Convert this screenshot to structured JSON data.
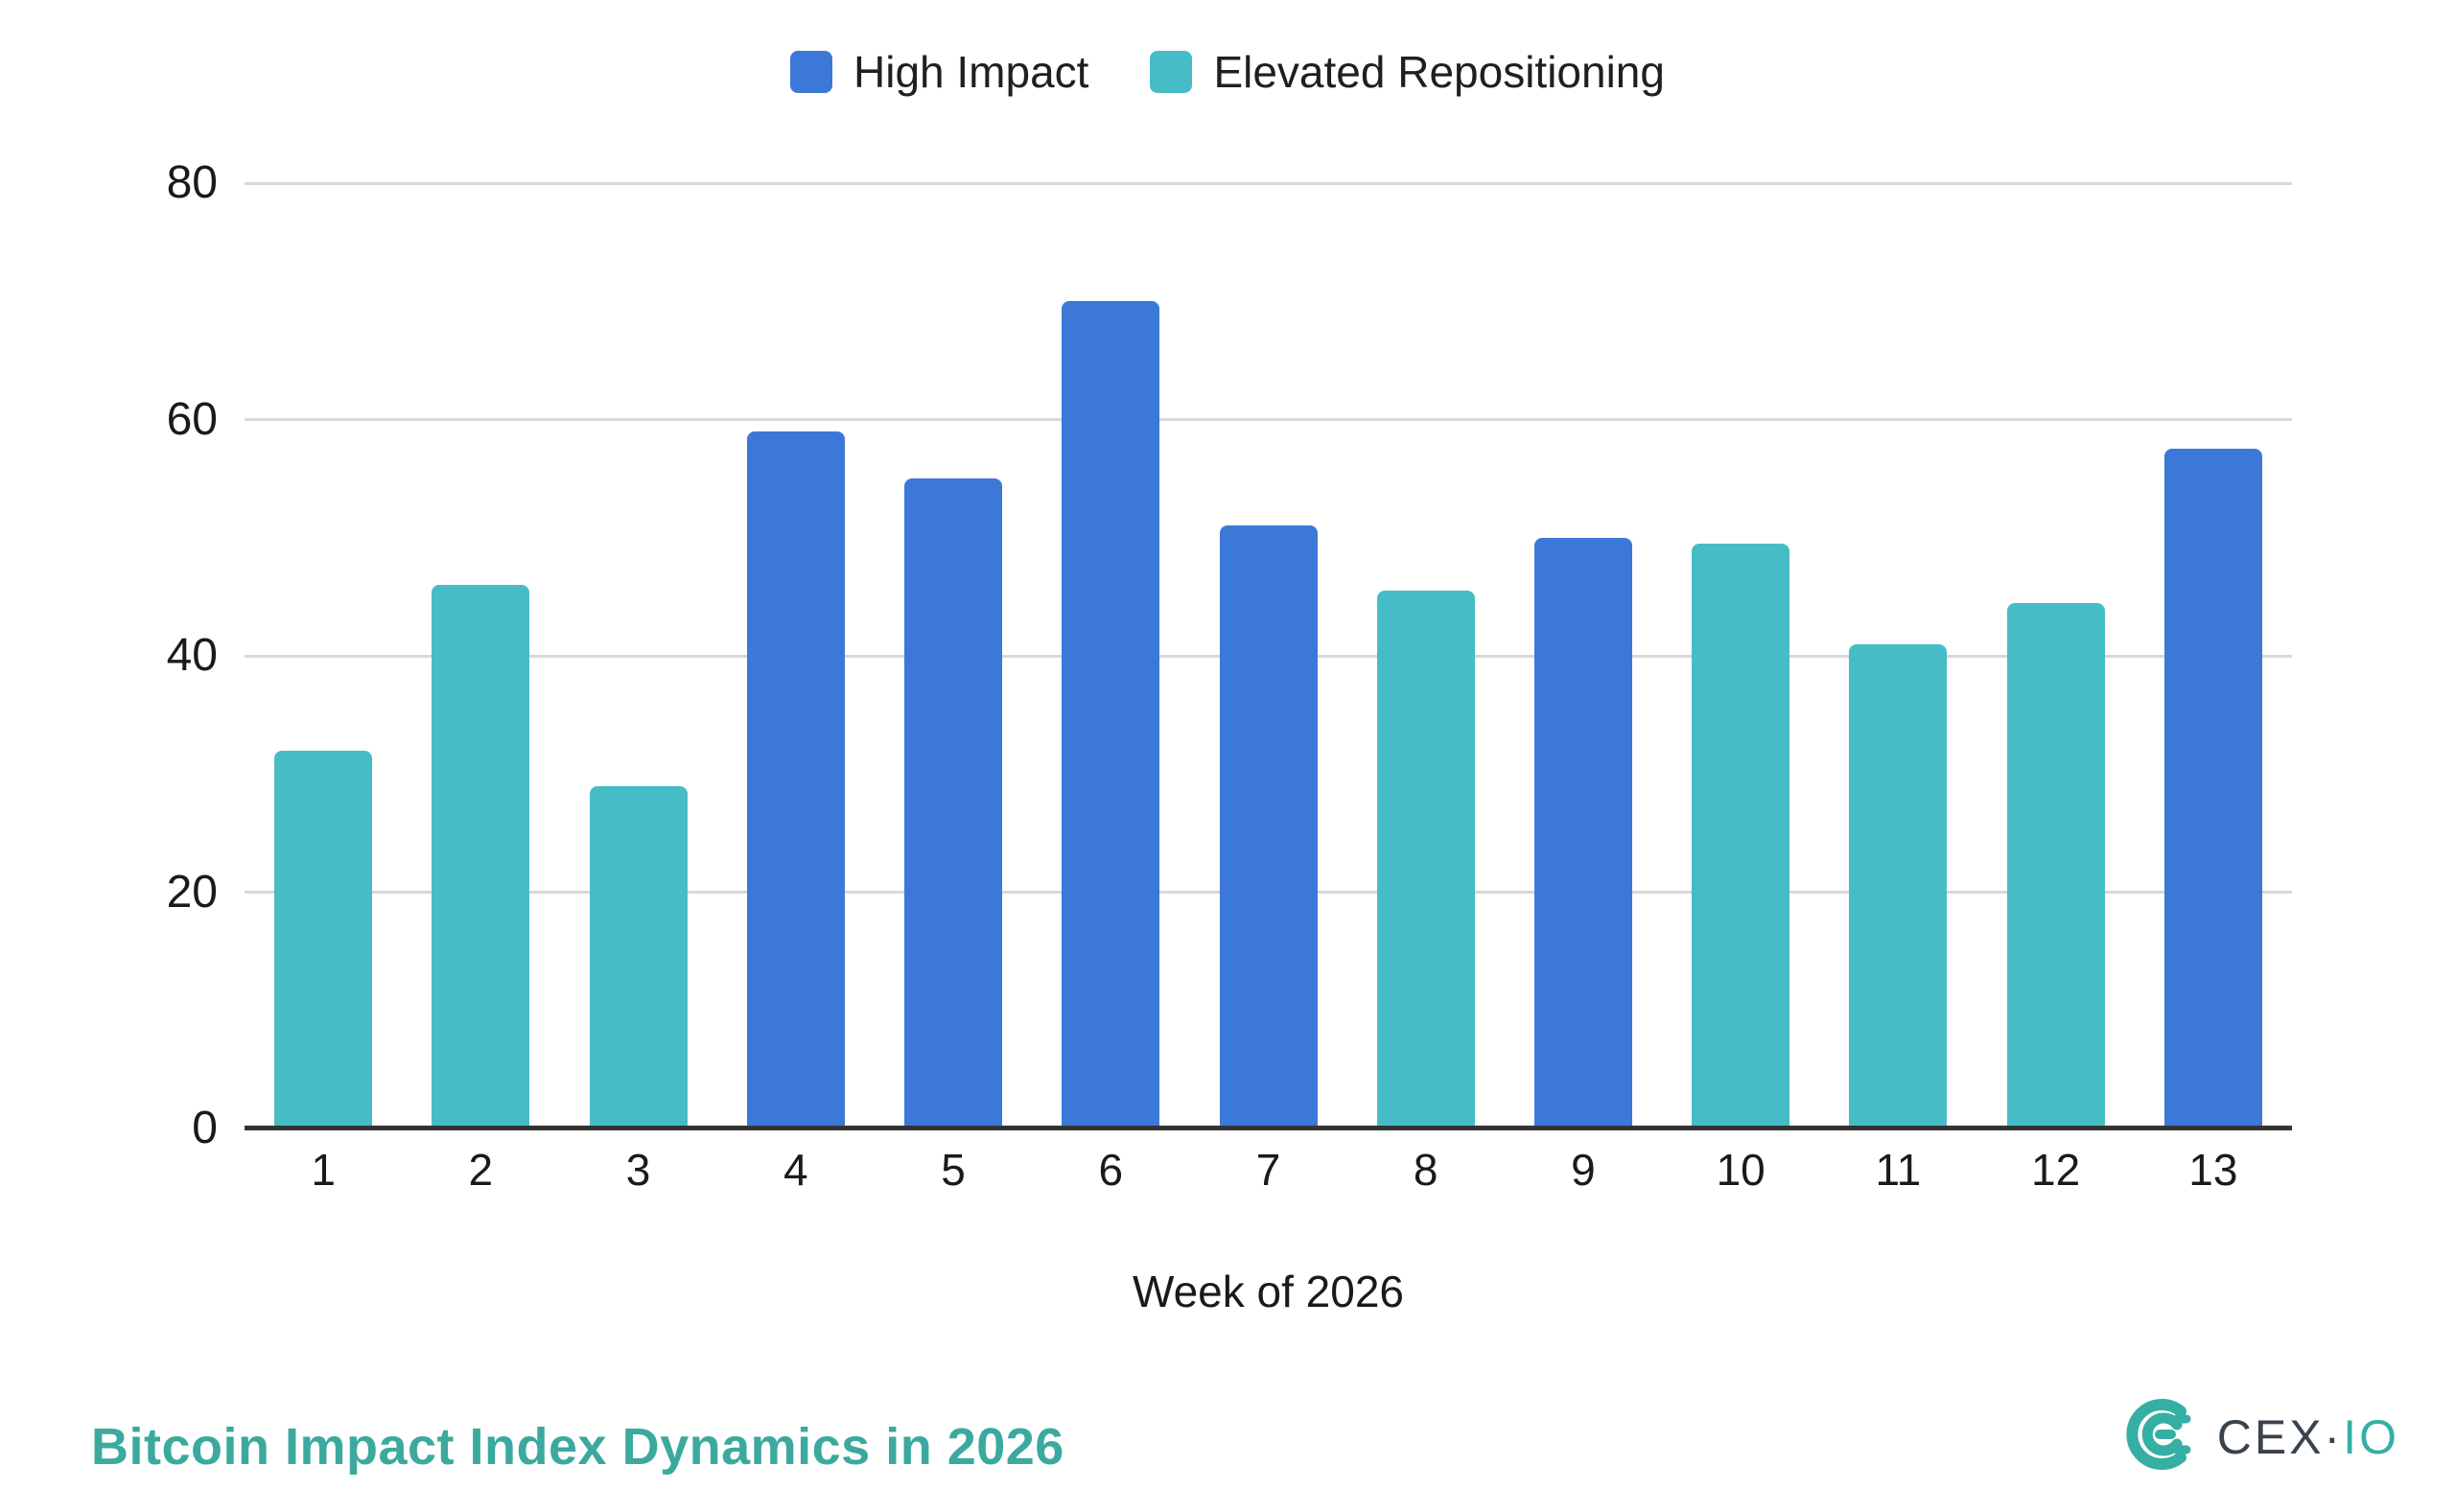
{
  "chart_data": {
    "type": "bar",
    "title": "Bitcoin Impact Index Dynamics in 2026",
    "xlabel": "Week of 2026",
    "ylabel": "",
    "ylim": [
      0,
      80
    ],
    "yticks": [
      0,
      20,
      40,
      60,
      80
    ],
    "grid": "horizontal",
    "legend_position": "top-center",
    "categories": [
      "1",
      "2",
      "3",
      "4",
      "5",
      "6",
      "7",
      "8",
      "9",
      "10",
      "11",
      "12",
      "13"
    ],
    "series": [
      {
        "name": "High Impact",
        "color": "#3C78D8"
      },
      {
        "name": "Elevated Repositioning",
        "color": "#46BDC6"
      }
    ],
    "bars": [
      {
        "week": "1",
        "value": 32,
        "series": "Elevated Repositioning"
      },
      {
        "week": "2",
        "value": 46,
        "series": "Elevated Repositioning"
      },
      {
        "week": "3",
        "value": 29,
        "series": "Elevated Repositioning"
      },
      {
        "week": "4",
        "value": 59,
        "series": "High Impact"
      },
      {
        "week": "5",
        "value": 55,
        "series": "High Impact"
      },
      {
        "week": "6",
        "value": 70,
        "series": "High Impact"
      },
      {
        "week": "7",
        "value": 51,
        "series": "High Impact"
      },
      {
        "week": "8",
        "value": 45.5,
        "series": "Elevated Repositioning"
      },
      {
        "week": "9",
        "value": 50,
        "series": "High Impact"
      },
      {
        "week": "10",
        "value": 49.5,
        "series": "Elevated Repositioning"
      },
      {
        "week": "11",
        "value": 41,
        "series": "Elevated Repositioning"
      },
      {
        "week": "12",
        "value": 44.5,
        "series": "Elevated Repositioning"
      },
      {
        "week": "13",
        "value": 57.5,
        "series": "High Impact"
      }
    ]
  },
  "colors": {
    "gridline": "#d8d8d8",
    "axis_line": "#333333",
    "tick_text": "#1a1a1a",
    "title_text": "#3BA99E",
    "logo_dark": "#39434D",
    "logo_teal": "#35AFA4"
  },
  "branding": {
    "logo_primary": "CEX",
    "logo_separator": "·",
    "logo_secondary": "IO"
  }
}
